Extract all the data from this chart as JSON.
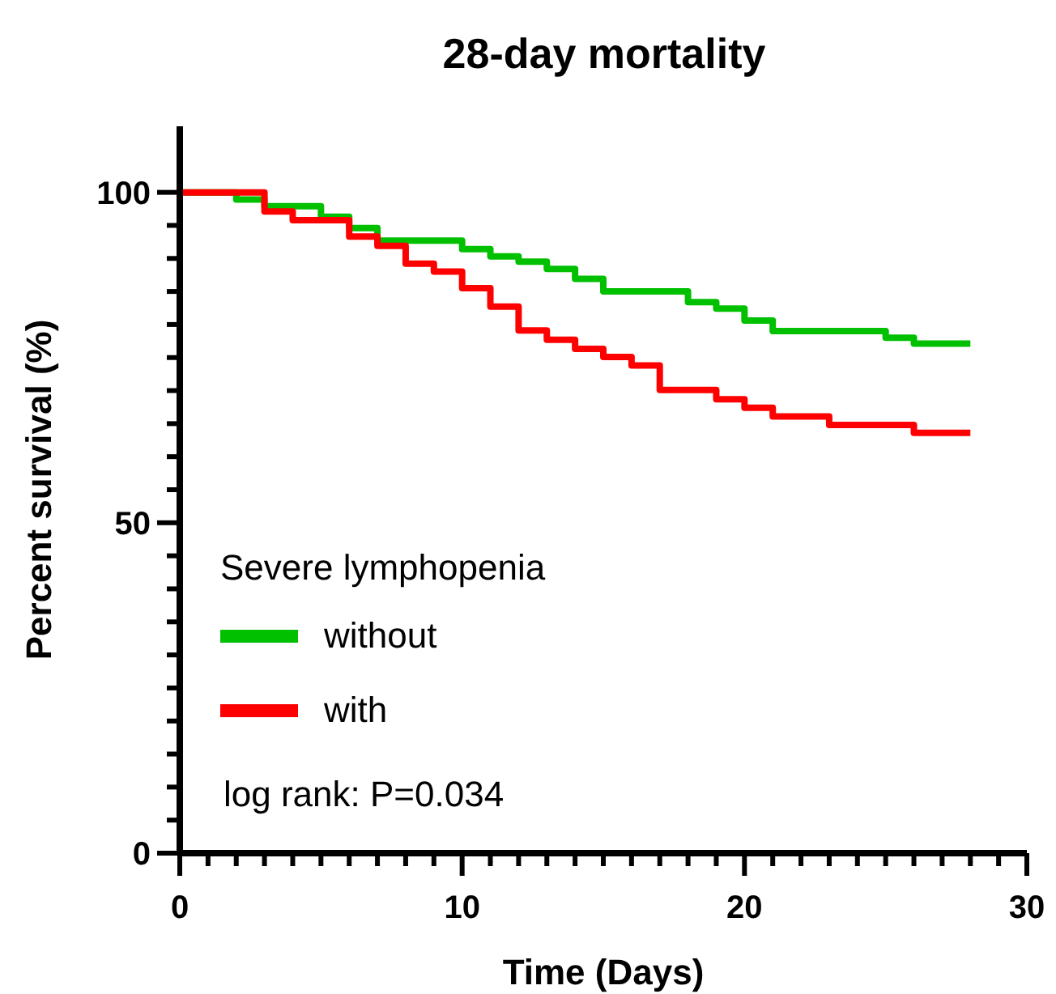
{
  "chart_data": {
    "type": "step",
    "title": "28-day mortality",
    "xlabel": "Time (Days)",
    "ylabel": "Percent survival (%)",
    "legend_title": "Severe lymphopenia",
    "series": [
      {
        "name": "without",
        "color": "#00c000",
        "x": [
          0,
          2,
          3,
          5,
          6,
          7,
          10,
          11,
          12,
          13,
          14,
          15,
          18,
          19,
          20,
          21,
          25,
          26,
          28
        ],
        "values": [
          100,
          98.9,
          97.9,
          96.3,
          94.6,
          92.7,
          91.4,
          90.3,
          89.5,
          88.4,
          86.9,
          85.0,
          83.4,
          82.4,
          80.6,
          79.0,
          78.0,
          77.1,
          77.1
        ]
      },
      {
        "name": "with",
        "color": "#ff0000",
        "x": [
          0,
          3,
          4,
          6,
          7,
          8,
          9,
          10,
          11,
          12,
          13,
          14,
          15,
          16,
          17,
          19,
          20,
          21,
          23,
          26,
          28
        ],
        "values": [
          100,
          97.1,
          95.8,
          93.3,
          91.9,
          89.2,
          88.0,
          85.5,
          82.7,
          79.1,
          77.7,
          76.3,
          75.1,
          73.8,
          70.1,
          68.7,
          67.4,
          66.1,
          64.8,
          63.6,
          63.6
        ]
      }
    ],
    "xlim": [
      0,
      30
    ],
    "ylim": [
      0,
      110
    ],
    "xticks": [
      0,
      {
        "value": 1,
        "label": null
      },
      {
        "value": 2,
        "label": null
      },
      {
        "value": 3,
        "label": null
      },
      {
        "value": 4,
        "label": null
      },
      {
        "value": 5,
        "label": null
      },
      {
        "value": 6,
        "label": null
      },
      {
        "value": 7,
        "label": null
      },
      {
        "value": 8,
        "label": null
      },
      {
        "value": 9,
        "label": null
      },
      10,
      {
        "value": 11,
        "label": null
      },
      {
        "value": 12,
        "label": null
      },
      {
        "value": 13,
        "label": null
      },
      {
        "value": 14,
        "label": null
      },
      {
        "value": 15,
        "label": null
      },
      {
        "value": 16,
        "label": null
      },
      {
        "value": 17,
        "label": null
      },
      {
        "value": 18,
        "label": null
      },
      {
        "value": 19,
        "label": null
      },
      20,
      {
        "value": 21,
        "label": null
      },
      {
        "value": 22,
        "label": null
      },
      {
        "value": 23,
        "label": null
      },
      {
        "value": 24,
        "label": null
      },
      {
        "value": 25,
        "label": null
      },
      {
        "value": 26,
        "label": null
      },
      {
        "value": 27,
        "label": null
      },
      {
        "value": 28,
        "label": null
      },
      {
        "value": 29,
        "label": null
      },
      30
    ],
    "yticks": [
      0,
      {
        "value": 5,
        "label": null
      },
      {
        "value": 10,
        "label": null
      },
      {
        "value": 15,
        "label": null
      },
      {
        "value": 20,
        "label": null
      },
      {
        "value": 25,
        "label": null
      },
      {
        "value": 30,
        "label": null
      },
      {
        "value": 35,
        "label": null
      },
      {
        "value": 40,
        "label": null
      },
      {
        "value": 45,
        "label": null
      },
      50,
      {
        "value": 55,
        "label": null
      },
      {
        "value": 60,
        "label": null
      },
      {
        "value": 65,
        "label": null
      },
      {
        "value": 70,
        "label": null
      },
      {
        "value": 75,
        "label": null
      },
      {
        "value": 80,
        "label": null
      },
      {
        "value": 85,
        "label": null
      },
      {
        "value": 90,
        "label": null
      },
      {
        "value": 95,
        "label": null
      },
      100
    ],
    "annotations": [
      "log rank: P=0.034"
    ],
    "legend": "bottom left",
    "grid": false,
    "marker": "none",
    "line_style": "solid"
  }
}
